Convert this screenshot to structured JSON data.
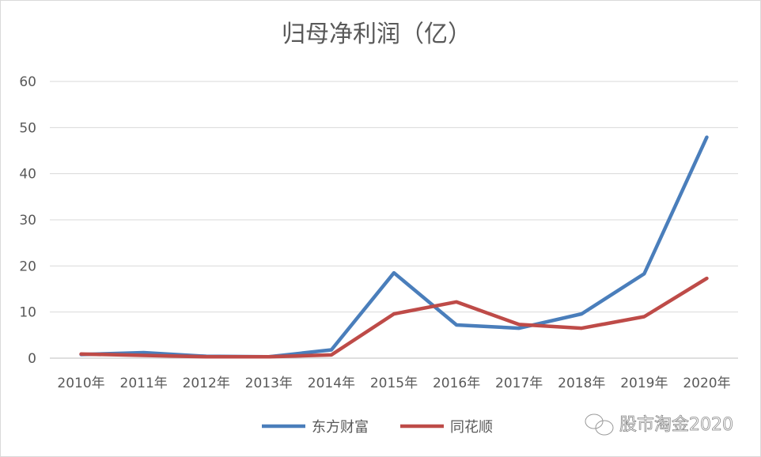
{
  "chart_data": {
    "type": "line",
    "title": "归母净利润（亿）",
    "categories": [
      "2010年",
      "2011年",
      "2012年",
      "2013年",
      "2014年",
      "2015年",
      "2016年",
      "2017年",
      "2018年",
      "2019年",
      "2020年"
    ],
    "ylim": [
      0,
      60
    ],
    "yticks": [
      0,
      10,
      20,
      30,
      40,
      50,
      60
    ],
    "grid": true,
    "legend_position": "bottom",
    "series": [
      {
        "name": "东方财富",
        "color": "#4a7ebb",
        "values": [
          0.8,
          1.2,
          0.4,
          0.3,
          1.8,
          18.5,
          7.2,
          6.5,
          9.6,
          18.3,
          47.9
        ]
      },
      {
        "name": "同花顺",
        "color": "#be4b48",
        "values": [
          0.9,
          0.6,
          0.3,
          0.3,
          0.7,
          9.6,
          12.2,
          7.3,
          6.5,
          9.0,
          17.3
        ]
      }
    ]
  },
  "watermark": {
    "text": "股市淘金2020",
    "icon": "wechat-icon"
  }
}
